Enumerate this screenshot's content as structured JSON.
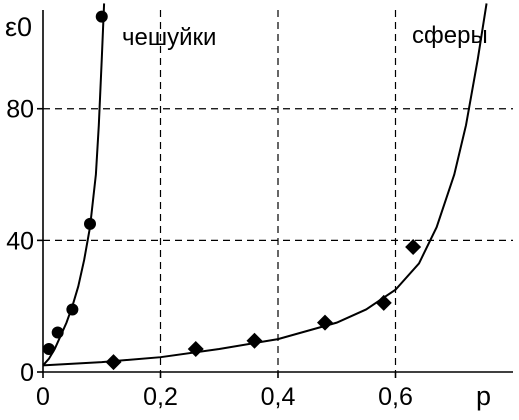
{
  "chart_data": {
    "type": "scatter",
    "xlabel": "p",
    "ylabel": "ε0",
    "xlim": [
      0,
      0.8
    ],
    "ylim": [
      0,
      110
    ],
    "x_ticks": [
      0,
      0.2,
      0.4,
      0.6
    ],
    "x_tick_labels": [
      "0",
      "0,2",
      "0,4",
      "0,6"
    ],
    "y_ticks": [
      0,
      40,
      80
    ],
    "y_tick_labels": [
      "0",
      "40",
      "80"
    ],
    "grid": "dashed",
    "series": [
      {
        "name": "чешуйки",
        "marker": "circle",
        "points": [
          {
            "x": 0.01,
            "y": 7
          },
          {
            "x": 0.025,
            "y": 12
          },
          {
            "x": 0.05,
            "y": 19
          },
          {
            "x": 0.08,
            "y": 45
          },
          {
            "x": 0.1,
            "y": 108
          }
        ],
        "fit_curve": [
          {
            "x": 0.0,
            "y": 2
          },
          {
            "x": 0.01,
            "y": 4
          },
          {
            "x": 0.02,
            "y": 7
          },
          {
            "x": 0.03,
            "y": 11
          },
          {
            "x": 0.04,
            "y": 15
          },
          {
            "x": 0.05,
            "y": 20
          },
          {
            "x": 0.06,
            "y": 26
          },
          {
            "x": 0.07,
            "y": 34
          },
          {
            "x": 0.08,
            "y": 44
          },
          {
            "x": 0.09,
            "y": 60
          },
          {
            "x": 0.095,
            "y": 75
          },
          {
            "x": 0.1,
            "y": 95
          },
          {
            "x": 0.104,
            "y": 112
          }
        ]
      },
      {
        "name": "сферы",
        "marker": "diamond",
        "points": [
          {
            "x": 0.12,
            "y": 3
          },
          {
            "x": 0.26,
            "y": 7
          },
          {
            "x": 0.36,
            "y": 9.5
          },
          {
            "x": 0.48,
            "y": 15
          },
          {
            "x": 0.58,
            "y": 21
          },
          {
            "x": 0.63,
            "y": 38
          }
        ],
        "fit_curve": [
          {
            "x": 0.0,
            "y": 2
          },
          {
            "x": 0.1,
            "y": 3
          },
          {
            "x": 0.2,
            "y": 4.5
          },
          {
            "x": 0.3,
            "y": 7
          },
          {
            "x": 0.4,
            "y": 10
          },
          {
            "x": 0.5,
            "y": 15
          },
          {
            "x": 0.55,
            "y": 19
          },
          {
            "x": 0.6,
            "y": 25
          },
          {
            "x": 0.64,
            "y": 33
          },
          {
            "x": 0.67,
            "y": 44
          },
          {
            "x": 0.7,
            "y": 60
          },
          {
            "x": 0.72,
            "y": 75
          },
          {
            "x": 0.74,
            "y": 95
          },
          {
            "x": 0.755,
            "y": 112
          }
        ]
      }
    ]
  }
}
